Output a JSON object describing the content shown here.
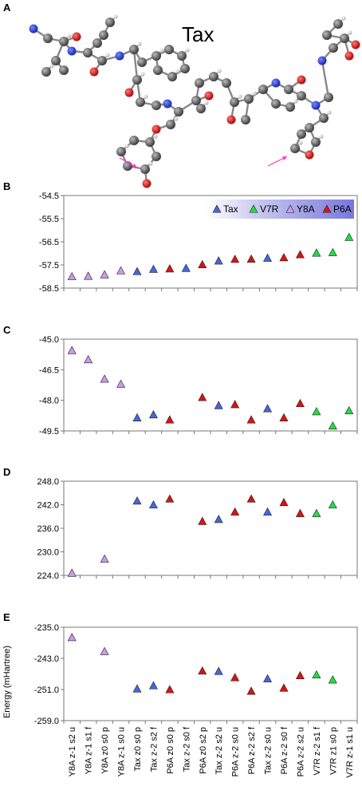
{
  "panel_letters": [
    "A",
    "B",
    "C",
    "D",
    "E"
  ],
  "molecule": {
    "label": "Tax"
  },
  "colors": {
    "Tax": "#4466dd",
    "V7R": "#22dd44",
    "Y8A": "#cc99ee",
    "P6A": "#dd1111",
    "legend_band": "#8888dd"
  },
  "legend": [
    "Tax",
    "V7R",
    "Y8A",
    "P6A"
  ],
  "categories": [
    "Y8A z-1 s2 u",
    "Y8A z-1 s1 f",
    "Y8A z0 s0 p",
    "Y8A z-1 s0 u",
    "Tax z0 s0 p",
    "Tax z-2 s2 f",
    "P6A z0 s0 p",
    "Tax z-2 s0 f",
    "P6A z0 s2 p",
    "Tax z-2 s2 u",
    "P6A z-2 s0 u",
    "P6A z-2 s2 f",
    "Tax z-2 s0 u",
    "P6A z-2 s0 f",
    "P6A z-2 s2 u",
    "V7R z-2 s1 f",
    "V7R z1 s0 p",
    "V7R z-1 s1 u"
  ],
  "chart_data": [
    {
      "type": "scatter",
      "panel": "B",
      "ylabel": "",
      "ylim": [
        -58.5,
        -54.5
      ],
      "yticks": [
        "-54.5",
        "-55.5",
        "-56.5",
        "-57.5",
        "-58.5"
      ],
      "series": [
        {
          "name": "Tax",
          "points": [
            [
              5,
              -57.78
            ],
            [
              6,
              -57.68
            ],
            [
              8,
              -57.64
            ],
            [
              10,
              -57.32
            ],
            [
              13,
              -57.2
            ]
          ]
        },
        {
          "name": "V7R",
          "points": [
            [
              16,
              -56.98
            ],
            [
              17,
              -56.96
            ],
            [
              18,
              -56.3
            ]
          ]
        },
        {
          "name": "Y8A",
          "points": [
            [
              1,
              -58.0
            ],
            [
              2,
              -57.98
            ],
            [
              3,
              -57.92
            ],
            [
              4,
              -57.75
            ]
          ]
        },
        {
          "name": "P6A",
          "points": [
            [
              7,
              -57.66
            ],
            [
              9,
              -57.48
            ],
            [
              11,
              -57.25
            ],
            [
              12,
              -57.24
            ],
            [
              14,
              -57.18
            ],
            [
              15,
              -57.05
            ]
          ]
        }
      ]
    },
    {
      "type": "scatter",
      "panel": "C",
      "ylabel": "",
      "ylim": [
        -49.5,
        -45.0
      ],
      "yticks": [
        "-45.0",
        "-46.5",
        "-48.0",
        "-49.5"
      ],
      "series": [
        {
          "name": "Tax",
          "points": [
            [
              5,
              -48.85
            ],
            [
              6,
              -48.7
            ],
            [
              10,
              -48.25
            ],
            [
              13,
              -48.4
            ]
          ]
        },
        {
          "name": "V7R",
          "points": [
            [
              16,
              -48.55
            ],
            [
              17,
              -49.25
            ],
            [
              18,
              -48.5
            ]
          ]
        },
        {
          "name": "Y8A",
          "points": [
            [
              1,
              -45.55
            ],
            [
              2,
              -46.0
            ],
            [
              3,
              -46.95
            ],
            [
              4,
              -47.2
            ]
          ]
        },
        {
          "name": "P6A",
          "points": [
            [
              7,
              -48.95
            ],
            [
              9,
              -47.85
            ],
            [
              11,
              -48.2
            ],
            [
              12,
              -48.95
            ],
            [
              14,
              -48.85
            ],
            [
              15,
              -48.15
            ]
          ]
        }
      ]
    },
    {
      "type": "scatter",
      "panel": "D",
      "ylabel": "",
      "ylim": [
        224.0,
        248.0
      ],
      "yticks": [
        "248.0",
        "242.0",
        "236.0",
        "230.0",
        "224.0"
      ],
      "series": [
        {
          "name": "Tax",
          "points": [
            [
              5,
              243.0
            ],
            [
              6,
              242.0
            ],
            [
              10,
              238.3
            ],
            [
              13,
              240.2
            ]
          ]
        },
        {
          "name": "V7R",
          "points": [
            [
              16,
              239.8
            ],
            [
              17,
              242.0
            ]
          ]
        },
        {
          "name": "Y8A",
          "points": [
            [
              1,
              224.6
            ],
            [
              3,
              228.2
            ]
          ]
        },
        {
          "name": "P6A",
          "points": [
            [
              7,
              243.5
            ],
            [
              9,
              237.8
            ],
            [
              11,
              240.2
            ],
            [
              12,
              243.5
            ],
            [
              14,
              242.6
            ],
            [
              15,
              239.8
            ]
          ]
        }
      ]
    },
    {
      "type": "scatter",
      "panel": "E",
      "ylabel": "Energy (mHartree)",
      "ylim": [
        -259.0,
        -235.0
      ],
      "yticks": [
        "-235.0",
        "-243.0",
        "-251.0",
        "-259.0"
      ],
      "series": [
        {
          "name": "Tax",
          "points": [
            [
              5,
              -250.8
            ],
            [
              6,
              -250.0
            ],
            [
              10,
              -246.3
            ],
            [
              13,
              -248.2
            ]
          ]
        },
        {
          "name": "V7R",
          "points": [
            [
              16,
              -247.2
            ],
            [
              17,
              -248.5
            ]
          ]
        },
        {
          "name": "Y8A",
          "points": [
            [
              1,
              -237.6
            ],
            [
              3,
              -241.2
            ]
          ]
        },
        {
          "name": "P6A",
          "points": [
            [
              7,
              -251.0
            ],
            [
              9,
              -246.2
            ],
            [
              11,
              -247.9
            ],
            [
              12,
              -251.4
            ],
            [
              14,
              -250.6
            ],
            [
              15,
              -247.4
            ]
          ]
        }
      ]
    }
  ]
}
